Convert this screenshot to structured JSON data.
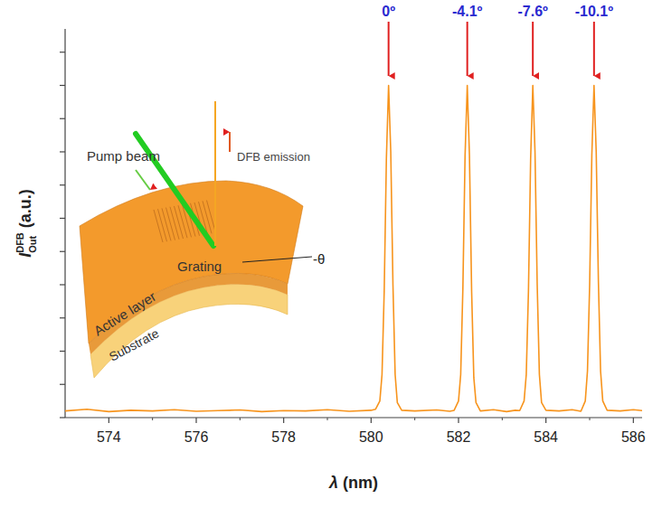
{
  "chart_data": {
    "type": "line",
    "xlabel": "λ (nm)",
    "ylabel": {
      "main": "I",
      "sup": "DFB",
      "sub": "Out",
      "unit": "(a.u.)"
    },
    "x": [
      573.0,
      573.5,
      574.0,
      574.5,
      575.0,
      575.5,
      576.0,
      576.5,
      577.0,
      577.5,
      578.0,
      578.5,
      579.0,
      579.5,
      580.0,
      580.1,
      580.2,
      580.25,
      580.3,
      580.35,
      580.4,
      580.45,
      580.5,
      580.55,
      580.6,
      580.7,
      581.0,
      581.5,
      581.8,
      581.9,
      582.0,
      582.05,
      582.1,
      582.15,
      582.2,
      582.25,
      582.3,
      582.35,
      582.4,
      582.5,
      582.8,
      583.1,
      583.3,
      583.4,
      583.5,
      583.55,
      583.6,
      583.65,
      583.7,
      583.75,
      583.8,
      583.85,
      583.9,
      584.0,
      584.3,
      584.6,
      584.8,
      584.9,
      584.95,
      585.0,
      585.05,
      585.1,
      585.15,
      585.2,
      585.25,
      585.3,
      585.4,
      585.7,
      586.0,
      586.2
    ],
    "series": [
      {
        "color": "#f7941d",
        "values": [
          0.02,
          0.025,
          0.018,
          0.022,
          0.02,
          0.024,
          0.019,
          0.021,
          0.023,
          0.018,
          0.021,
          0.02,
          0.024,
          0.019,
          0.022,
          0.025,
          0.05,
          0.13,
          0.38,
          0.78,
          1.0,
          0.8,
          0.4,
          0.13,
          0.045,
          0.022,
          0.02,
          0.023,
          0.019,
          0.022,
          0.05,
          0.13,
          0.39,
          0.79,
          1.0,
          0.79,
          0.38,
          0.12,
          0.045,
          0.02,
          0.024,
          0.018,
          0.022,
          0.021,
          0.05,
          0.13,
          0.38,
          0.78,
          1.0,
          0.8,
          0.4,
          0.13,
          0.045,
          0.022,
          0.02,
          0.024,
          0.019,
          0.05,
          0.14,
          0.4,
          0.79,
          1.0,
          0.8,
          0.41,
          0.14,
          0.05,
          0.022,
          0.02,
          0.024,
          0.021
        ]
      }
    ],
    "xlim": [
      573,
      586.2
    ],
    "xticks": [
      574,
      576,
      578,
      580,
      582,
      584,
      586
    ],
    "ylim": [
      0,
      1.17
    ],
    "yticks": [
      0,
      0.1,
      0.2,
      0.3,
      0.4,
      0.5,
      0.6,
      0.7,
      0.8,
      0.9,
      1.0,
      1.1
    ],
    "tick_labels": "x",
    "annotations": [
      {
        "text": "0º",
        "x": 580.4
      },
      {
        "text": "-4.1º",
        "x": 582.2
      },
      {
        "text": "-7.6º",
        "x": 583.7
      },
      {
        "text": "-10.1º",
        "x": 585.1
      }
    ],
    "inset_labels": {
      "pump": "Pump beam",
      "emission": "DFB emission",
      "grating": "Grating",
      "active": "Active layer",
      "substrate": "Substrate",
      "angle": "-θ"
    }
  }
}
